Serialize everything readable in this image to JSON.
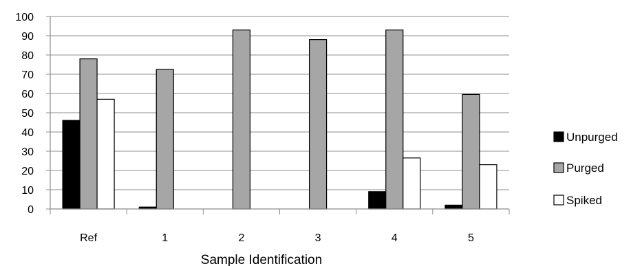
{
  "chart_data": {
    "type": "bar",
    "title": "",
    "xlabel": "Sample Identification",
    "ylabel": "",
    "categories": [
      "Ref",
      "1",
      "2",
      "3",
      "4",
      "5"
    ],
    "ylim": [
      0,
      100
    ],
    "yticks": [
      0,
      10,
      20,
      30,
      40,
      50,
      60,
      70,
      80,
      90,
      100
    ],
    "grid": true,
    "legend_position": "right",
    "series": [
      {
        "name": "Unpurged",
        "color": "#000000",
        "values": [
          46,
          1,
          0,
          0,
          9,
          2
        ]
      },
      {
        "name": "Purged",
        "color": "#a6a6a6",
        "values": [
          78,
          72.5,
          93,
          88,
          93,
          59.5
        ]
      },
      {
        "name": "Spiked",
        "color": "#ffffff",
        "values": [
          57,
          0,
          0,
          0,
          26.5,
          23
        ]
      }
    ]
  }
}
